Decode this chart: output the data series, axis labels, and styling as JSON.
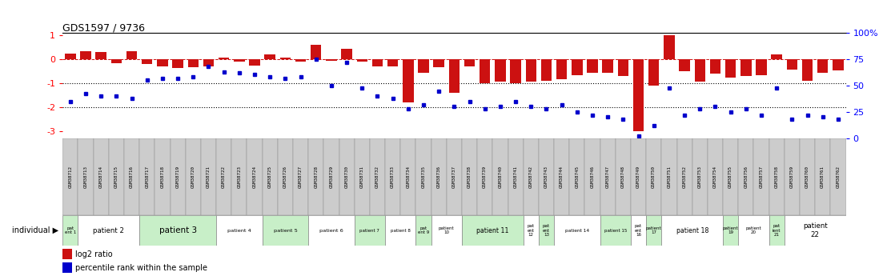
{
  "title": "GDS1597 / 9736",
  "gsm_labels": [
    "GSM38712",
    "GSM38713",
    "GSM38714",
    "GSM38715",
    "GSM38716",
    "GSM38717",
    "GSM38718",
    "GSM38719",
    "GSM38720",
    "GSM38721",
    "GSM38722",
    "GSM38723",
    "GSM38724",
    "GSM38725",
    "GSM38726",
    "GSM38727",
    "GSM38728",
    "GSM38729",
    "GSM38730",
    "GSM38731",
    "GSM38732",
    "GSM38733",
    "GSM38734",
    "GSM38735",
    "GSM38736",
    "GSM38737",
    "GSM38738",
    "GSM38739",
    "GSM38740",
    "GSM38741",
    "GSM38742",
    "GSM38743",
    "GSM38744",
    "GSM38745",
    "GSM38746",
    "GSM38747",
    "GSM38748",
    "GSM38749",
    "GSM38750",
    "GSM38751",
    "GSM38752",
    "GSM38753",
    "GSM38754",
    "GSM38755",
    "GSM38756",
    "GSM38757",
    "GSM38758",
    "GSM38759",
    "GSM38760",
    "GSM38761",
    "GSM38762"
  ],
  "log2_ratio": [
    0.25,
    0.35,
    0.3,
    -0.15,
    0.35,
    -0.2,
    -0.3,
    -0.35,
    -0.32,
    -0.28,
    0.08,
    -0.1,
    -0.25,
    0.22,
    0.08,
    -0.08,
    0.6,
    -0.05,
    0.45,
    -0.1,
    -0.3,
    -0.28,
    -1.8,
    -0.55,
    -0.32,
    -1.4,
    -0.28,
    -1.0,
    -0.95,
    -1.0,
    -0.95,
    -0.9,
    -0.82,
    -0.65,
    -0.58,
    -0.55,
    -0.7,
    -3.0,
    -1.1,
    1.0,
    -0.5,
    -0.95,
    -0.6,
    -0.78,
    -0.7,
    -0.65,
    0.2,
    -0.42,
    -0.9,
    -0.55,
    -0.45
  ],
  "percentile_rank": [
    35,
    42,
    40,
    40,
    38,
    55,
    57,
    57,
    58,
    68,
    63,
    62,
    61,
    58,
    57,
    58,
    75,
    50,
    72,
    48,
    40,
    38,
    28,
    32,
    45,
    30,
    35,
    28,
    30,
    35,
    30,
    28,
    32,
    25,
    22,
    20,
    18,
    2,
    12,
    48,
    22,
    28,
    30,
    25,
    28,
    22,
    48,
    18,
    22,
    20,
    18
  ],
  "patients": [
    {
      "label": "pat\nent 1",
      "start": 0,
      "end": 1,
      "color": "#c8efc8"
    },
    {
      "label": "patient 2",
      "start": 1,
      "end": 5,
      "color": "#ffffff"
    },
    {
      "label": "patient 3",
      "start": 5,
      "end": 10,
      "color": "#c8efc8"
    },
    {
      "label": "patient 4",
      "start": 10,
      "end": 13,
      "color": "#ffffff"
    },
    {
      "label": "patient 5",
      "start": 13,
      "end": 16,
      "color": "#c8efc8"
    },
    {
      "label": "patient 6",
      "start": 16,
      "end": 19,
      "color": "#ffffff"
    },
    {
      "label": "patient 7",
      "start": 19,
      "end": 21,
      "color": "#c8efc8"
    },
    {
      "label": "patient 8",
      "start": 21,
      "end": 23,
      "color": "#ffffff"
    },
    {
      "label": "pat\nent 9",
      "start": 23,
      "end": 24,
      "color": "#c8efc8"
    },
    {
      "label": "patient\n10",
      "start": 24,
      "end": 26,
      "color": "#ffffff"
    },
    {
      "label": "patient 11",
      "start": 26,
      "end": 30,
      "color": "#c8efc8"
    },
    {
      "label": "pat\nent\n12",
      "start": 30,
      "end": 31,
      "color": "#ffffff"
    },
    {
      "label": "pat\nent\n13",
      "start": 31,
      "end": 32,
      "color": "#c8efc8"
    },
    {
      "label": "patient 14",
      "start": 32,
      "end": 35,
      "color": "#ffffff"
    },
    {
      "label": "patient 15",
      "start": 35,
      "end": 37,
      "color": "#c8efc8"
    },
    {
      "label": "pat\nent\n16",
      "start": 37,
      "end": 38,
      "color": "#ffffff"
    },
    {
      "label": "patient\n17",
      "start": 38,
      "end": 39,
      "color": "#c8efc8"
    },
    {
      "label": "patient 18",
      "start": 39,
      "end": 43,
      "color": "#ffffff"
    },
    {
      "label": "patient\n19",
      "start": 43,
      "end": 44,
      "color": "#c8efc8"
    },
    {
      "label": "patient\n20",
      "start": 44,
      "end": 46,
      "color": "#ffffff"
    },
    {
      "label": "pat\nient\n21",
      "start": 46,
      "end": 47,
      "color": "#c8efc8"
    },
    {
      "label": "patient\n22",
      "start": 47,
      "end": 51,
      "color": "#ffffff"
    }
  ],
  "bar_color": "#cc1111",
  "dot_color": "#0000cc",
  "ylim": [
    -3.3,
    1.1
  ],
  "yticks": [
    1,
    0,
    -1,
    -2,
    -3
  ],
  "right_yticks_pct": [
    100,
    75,
    50,
    25,
    0
  ],
  "gsm_bg_color": "#cccccc",
  "legend_items": [
    {
      "color": "#cc1111",
      "label": "log2 ratio"
    },
    {
      "color": "#0000cc",
      "label": "percentile rank within the sample"
    }
  ]
}
